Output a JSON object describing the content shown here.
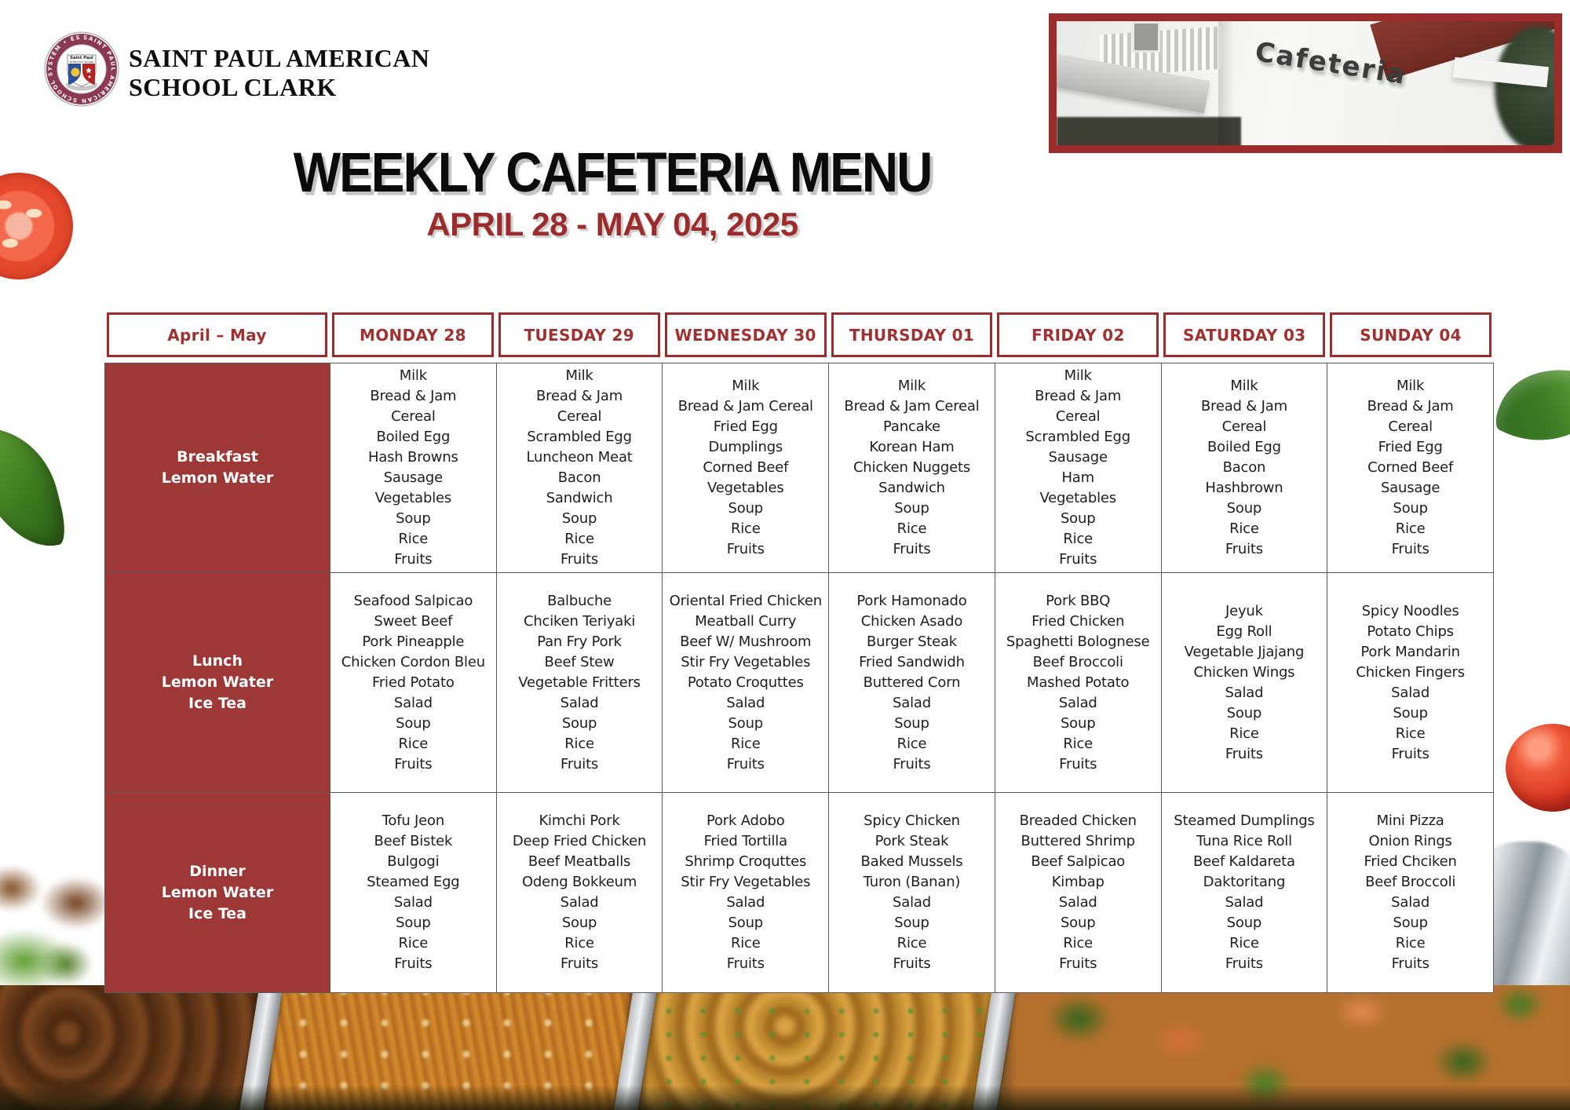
{
  "school": {
    "name_line1": "SAINT PAUL AMERICAN",
    "name_line2": "SCHOOL CLARK",
    "seal_text": "SAINT PAUL AMERICAN SCHOOL SYSTEM • EST. 2003 •",
    "seal_shield_line1": "Saint Paul",
    "seal_shield_line2": "American School"
  },
  "photo": {
    "caption": "Cafeteria"
  },
  "title": "WEEKLY CAFETERIA MENU",
  "subtitle": "APRIL 28 - MAY 04, 2025",
  "colors": {
    "maroon_fill": "#9D3837",
    "border_red": "#9C2B2B",
    "header_text_red": "#A03131",
    "body_text": "#1E1E1E"
  },
  "images": {
    "header_photo": "cafeteria-building-photo",
    "top_left": "tomato-slice-image",
    "mid_left": "leaf-image",
    "top_right_edge": "leaf-image",
    "mid_right_edge": "tomato-image",
    "bottom_left": "lettuce-and-fried-food-image",
    "bottom_right": "metal-pot-image",
    "bottom_strip": "buffet-trays-photo"
  },
  "table": {
    "columns": [
      "April – May",
      "MONDAY 28",
      "TUESDAY 29",
      "WEDNESDAY 30",
      "THURSDAY 01",
      "FRIDAY 02",
      "SATURDAY 03",
      "SUNDAY 04"
    ],
    "rows": [
      {
        "label": [
          "Breakfast",
          "Lemon Water"
        ],
        "cells": [
          [
            "Milk",
            "Bread & Jam",
            "Cereal",
            "Boiled Egg",
            "Hash Browns",
            "Sausage",
            "Vegetables",
            "Soup",
            "Rice",
            "Fruits"
          ],
          [
            "Milk",
            "Bread & Jam",
            "Cereal",
            "Scrambled Egg",
            "Luncheon Meat",
            "Bacon",
            "Sandwich",
            "Soup",
            "Rice",
            "Fruits"
          ],
          [
            "Milk",
            "Bread & Jam Cereal",
            "Fried Egg",
            "Dumplings",
            "Corned Beef",
            "Vegetables",
            "Soup",
            "Rice",
            "Fruits"
          ],
          [
            "Milk",
            "Bread & Jam Cereal",
            "Pancake",
            "Korean Ham",
            "Chicken Nuggets",
            "Sandwich",
            "Soup",
            "Rice",
            "Fruits"
          ],
          [
            "Milk",
            "Bread & Jam",
            "Cereal",
            "Scrambled Egg",
            "Sausage",
            "Ham",
            "Vegetables",
            "Soup",
            "Rice",
            "Fruits"
          ],
          [
            "Milk",
            "Bread & Jam",
            "Cereal",
            "Boiled Egg",
            "Bacon",
            "Hashbrown",
            "Soup",
            "Rice",
            "Fruits"
          ],
          [
            "Milk",
            "Bread & Jam",
            "Cereal",
            "Fried Egg",
            "Corned Beef",
            "Sausage",
            "Soup",
            "Rice",
            "Fruits"
          ]
        ]
      },
      {
        "label": [
          "Lunch",
          "Lemon Water",
          "Ice Tea"
        ],
        "cells": [
          [
            "Seafood Salpicao",
            "Sweet Beef",
            "Pork Pineapple",
            "Chicken Cordon Bleu",
            "Fried Potato",
            "Salad",
            "Soup",
            "Rice",
            "Fruits"
          ],
          [
            "Balbuche",
            "Chciken Teriyaki",
            "Pan Fry Pork",
            "Beef Stew",
            "Vegetable Fritters",
            "Salad",
            "Soup",
            "Rice",
            "Fruits"
          ],
          [
            "Oriental Fried Chicken",
            "Meatball Curry",
            "Beef W/ Mushroom",
            "Stir Fry Vegetables",
            "Potato Croquttes",
            "Salad",
            "Soup",
            "Rice",
            "Fruits"
          ],
          [
            "Pork Hamonado",
            "Chicken Asado",
            "Burger Steak",
            "Fried Sandwidh",
            "Buttered Corn",
            "Salad",
            "Soup",
            "Rice",
            "Fruits"
          ],
          [
            "Pork BBQ",
            "Fried Chicken",
            "Spaghetti Bolognese",
            "Beef Broccoli",
            "Mashed Potato",
            "Salad",
            "Soup",
            "Rice",
            "Fruits"
          ],
          [
            "Jeyuk",
            "Egg Roll",
            "Vegetable Jjajang",
            "Chicken Wings",
            "Salad",
            "Soup",
            "Rice",
            "Fruits"
          ],
          [
            "Spicy Noodles",
            "Potato Chips",
            "Pork Mandarin",
            "Chicken Fingers",
            "Salad",
            "Soup",
            "Rice",
            "Fruits"
          ]
        ]
      },
      {
        "label": [
          "Dinner",
          "Lemon Water",
          "Ice Tea"
        ],
        "cells": [
          [
            "Tofu Jeon",
            "Beef Bistek",
            "Bulgogi",
            "Steamed Egg",
            "Salad",
            "Soup",
            "Rice",
            "Fruits"
          ],
          [
            "Kimchi Pork",
            "Deep Fried Chicken",
            "Beef Meatballs",
            "Odeng Bokkeum",
            "Salad",
            "Soup",
            "Rice",
            "Fruits"
          ],
          [
            "Pork Adobo",
            "Fried Tortilla",
            "Shrimp Croquttes",
            "Stir Fry Vegetables",
            "Salad",
            "Soup",
            "Rice",
            "Fruits"
          ],
          [
            "Spicy Chicken",
            "Pork Steak",
            "Baked Mussels",
            "Turon (Banan)",
            "Salad",
            "Soup",
            "Rice",
            "Fruits"
          ],
          [
            "Breaded Chicken",
            "Buttered Shrimp",
            "Beef Salpicao",
            "Kimbap",
            "Salad",
            "Soup",
            "Rice",
            "Fruits"
          ],
          [
            "Steamed Dumplings",
            "Tuna Rice Roll",
            "Beef Kaldareta",
            "Daktoritang",
            "Salad",
            "Soup",
            "Rice",
            "Fruits"
          ],
          [
            "Mini Pizza",
            "Onion Rings",
            "Fried Chciken",
            "Beef Broccoli",
            "Salad",
            "Soup",
            "Rice",
            "Fruits"
          ]
        ]
      }
    ]
  }
}
